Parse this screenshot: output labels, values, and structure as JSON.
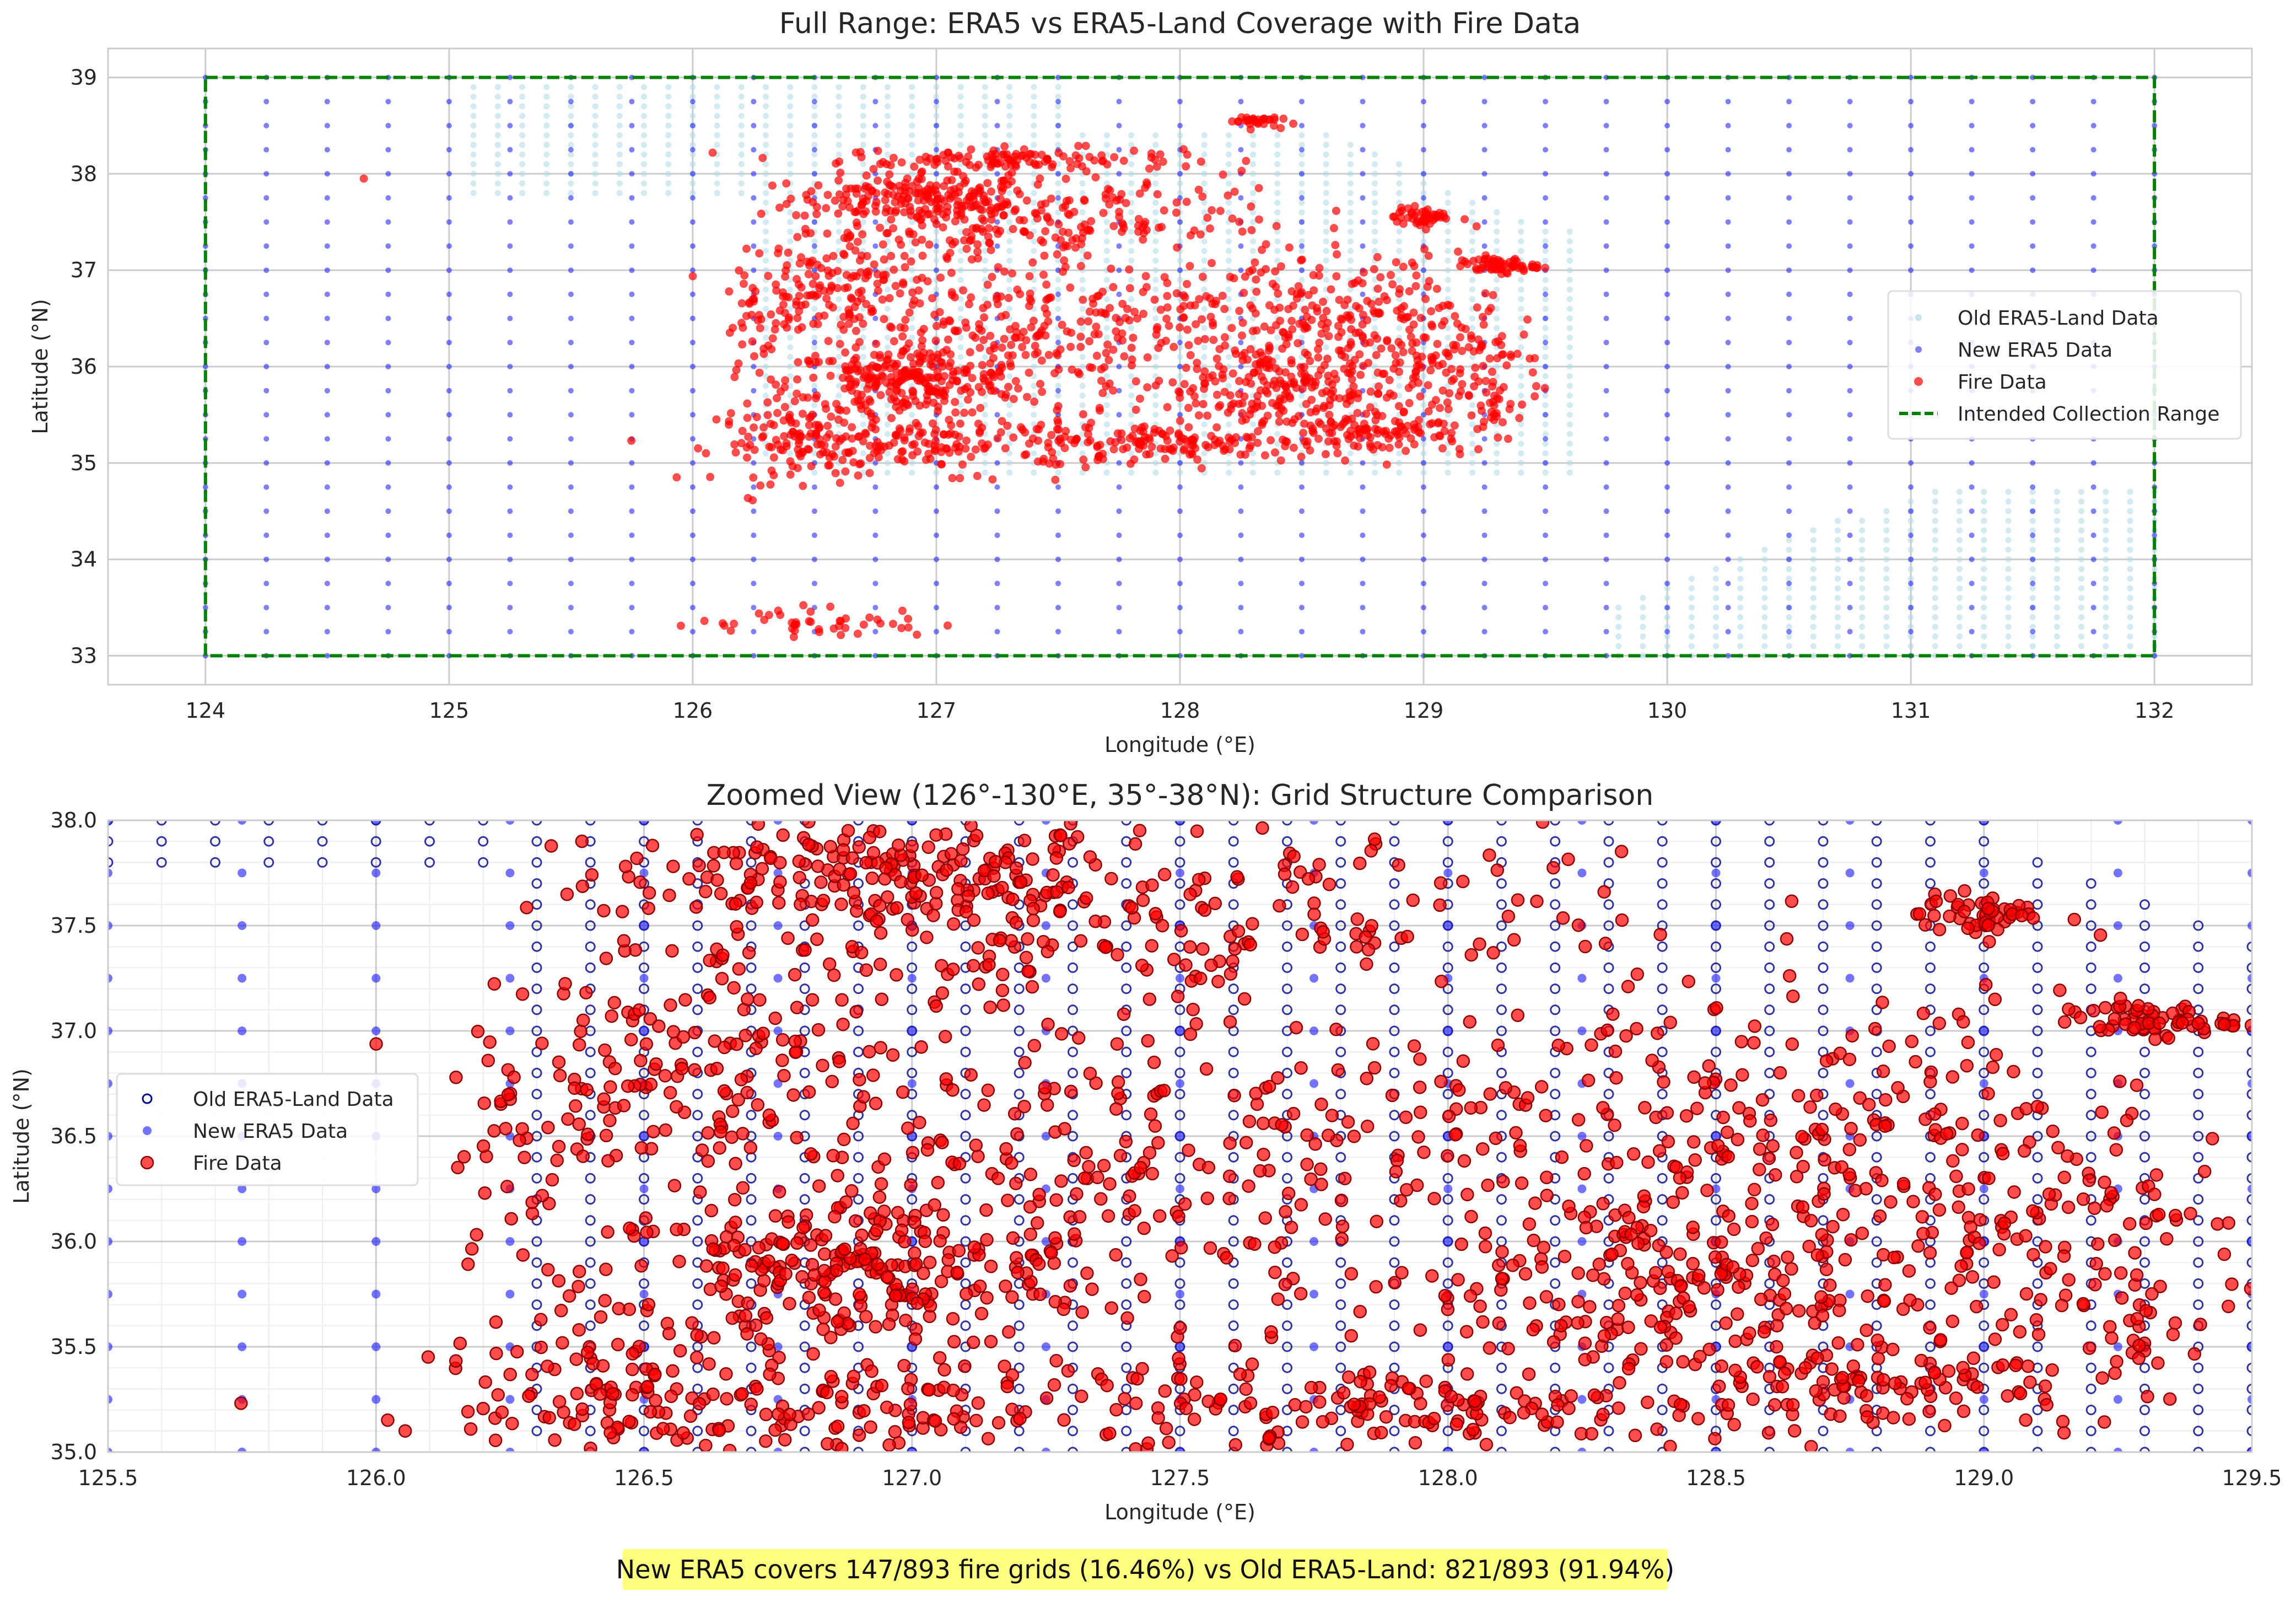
{
  "chart_data": [
    {
      "type": "scatter",
      "title": "Full Range: ERA5 vs ERA5-Land Coverage with Fire Data",
      "xlabel": "Longitude (°E)",
      "ylabel": "Latitude (°N)",
      "xlim": [
        123.6,
        132.4
      ],
      "ylim": [
        32.7,
        39.3
      ],
      "xticks": [
        "124",
        "125",
        "126",
        "127",
        "128",
        "129",
        "130",
        "131",
        "132"
      ],
      "yticks": [
        "33",
        "34",
        "35",
        "36",
        "37",
        "38",
        "39"
      ],
      "grid": true,
      "legend_position": "center-right",
      "legend": [
        "Old ERA5-Land Data",
        "New ERA5 Data",
        "Fire Data",
        "Intended Collection Range"
      ],
      "series": [
        {
          "name": "Old ERA5-Land Data",
          "color": "#add8e6",
          "grid_spacing_deg": 0.1,
          "regions": [
            {
              "lon": [
                125.0,
                127.5
              ],
              "lat": [
                37.8,
                39.0
              ]
            },
            {
              "lon": [
                126.1,
                129.6
              ],
              "lat": [
                34.4,
                38.5
              ]
            },
            {
              "lon": [
                129.7,
                132.0
              ],
              "lat": [
                33.0,
                34.8
              ]
            }
          ]
        },
        {
          "name": "New ERA5 Data",
          "color": "#0000ff",
          "grid_spacing_deg": 0.25,
          "lon_range": [
            124.0,
            132.0
          ],
          "lat_range": [
            33.0,
            39.0
          ]
        },
        {
          "name": "Fire Data",
          "color": "#ff0000",
          "clusters": [
            {
              "lon": 126.9,
              "lat": 37.7
            },
            {
              "lon": 127.0,
              "lat": 35.9
            },
            {
              "lon": 128.4,
              "lat": 35.8
            },
            {
              "lon": 128.3,
              "lat": 38.5
            },
            {
              "lon": 129.3,
              "lat": 37.05
            },
            {
              "lon": 129.0,
              "lat": 37.5
            },
            {
              "lon": 126.5,
              "lat": 33.4
            },
            {
              "lon": 124.65,
              "lat": 37.95
            }
          ]
        },
        {
          "name": "Intended Collection Range",
          "color": "#008000",
          "style": "dashed",
          "lon": [
            124,
            132
          ],
          "lat": [
            33,
            39
          ]
        }
      ]
    },
    {
      "type": "scatter",
      "title": "Zoomed View (126°-130°E, 35°-38°N): Grid Structure Comparison",
      "xlabel": "Longitude (°E)",
      "ylabel": "Latitude (°N)",
      "xlim": [
        125.5,
        129.5
      ],
      "ylim": [
        35.0,
        38.0
      ],
      "xticks": [
        "125.5",
        "126.0",
        "126.5",
        "127.0",
        "127.5",
        "128.0",
        "128.5",
        "129.0",
        "129.5"
      ],
      "yticks": [
        "35.0",
        "35.5",
        "36.0",
        "36.5",
        "37.0",
        "37.5",
        "38.0"
      ],
      "grid": true,
      "legend_position": "center-left",
      "legend": [
        "Old ERA5-Land Data",
        "New ERA5 Data",
        "Fire Data"
      ],
      "series": [
        {
          "name": "Old ERA5-Land Data",
          "color": "#00008b",
          "marker": "hollow",
          "grid_spacing_deg": 0.1
        },
        {
          "name": "New ERA5 Data",
          "color": "#0000ff",
          "grid_spacing_deg": 0.25
        },
        {
          "name": "Fire Data",
          "color": "#ff0000"
        }
      ]
    }
  ],
  "summary": "New ERA5 covers 147/893 fire grids (16.46%) vs Old ERA5-Land: 821/893 (91.94%)"
}
